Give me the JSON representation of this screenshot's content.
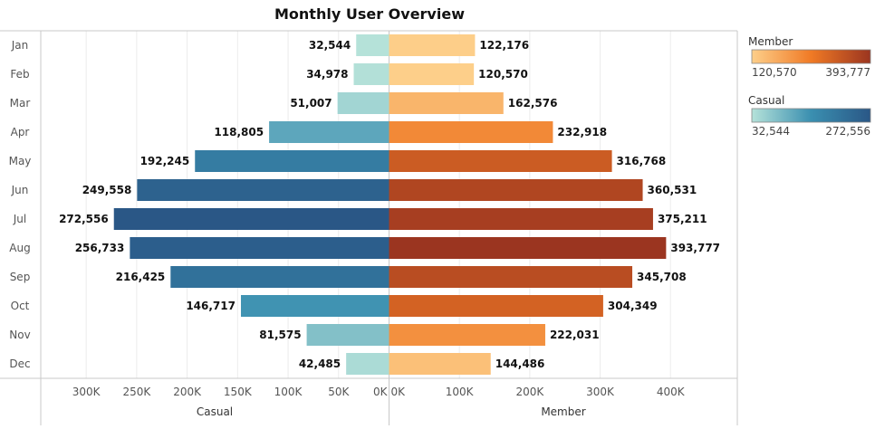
{
  "chart_data": {
    "type": "bar",
    "title": "Monthly User Overview",
    "categories": [
      "Jan",
      "Feb",
      "Mar",
      "Apr",
      "May",
      "Jun",
      "Jul",
      "Aug",
      "Sep",
      "Oct",
      "Nov",
      "Dec"
    ],
    "series": [
      {
        "name": "Casual",
        "values": [
          32544,
          34978,
          51007,
          118805,
          192245,
          249558,
          272556,
          256733,
          216425,
          146717,
          81575,
          42485
        ]
      },
      {
        "name": "Member",
        "values": [
          122176,
          120570,
          162576,
          232918,
          316768,
          360531,
          375211,
          393777,
          345708,
          304349,
          222031,
          144486
        ]
      }
    ],
    "value_labels": {
      "Casual": [
        "32,544",
        "34,978",
        "51,007",
        "118,805",
        "192,245",
        "249,558",
        "272,556",
        "256,733",
        "216,425",
        "146,717",
        "81,575",
        "42,485"
      ],
      "Member": [
        "122,176",
        "120,570",
        "162,576",
        "232,918",
        "316,768",
        "360,531",
        "375,211",
        "393,777",
        "345,708",
        "304,349",
        "222,031",
        "144,486"
      ]
    },
    "casual_axis": {
      "label": "Casual",
      "ticks": [
        300000,
        250000,
        200000,
        150000,
        100000,
        50000,
        0
      ],
      "tick_labels": [
        "300K",
        "250K",
        "200K",
        "150K",
        "100K",
        "50K",
        "0K"
      ],
      "range": [
        0,
        345000
      ]
    },
    "member_axis": {
      "label": "Member",
      "ticks": [
        0,
        100000,
        200000,
        300000,
        400000
      ],
      "tick_labels": [
        "0K",
        "100K",
        "200K",
        "300K",
        "400K"
      ],
      "range": [
        0,
        495000
      ]
    },
    "legends": [
      {
        "title": "Member",
        "min_label": "120,570",
        "max_label": "393,777",
        "colors": [
          "#fdcf8a",
          "#f07a25",
          "#9b3520"
        ]
      },
      {
        "title": "Casual",
        "min_label": "32,544",
        "max_label": "272,556",
        "colors": [
          "#b5e2d9",
          "#3a8fb0",
          "#2a5786"
        ]
      }
    ],
    "grid": true,
    "legend_position": "right"
  }
}
